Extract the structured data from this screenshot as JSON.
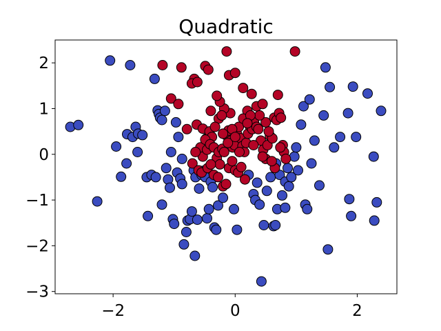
{
  "chart_data": {
    "type": "scatter",
    "title": "Quadratic",
    "xlabel": "",
    "ylabel": "",
    "xlim": [
      -2.95,
      2.65
    ],
    "ylim": [
      -3.05,
      2.5
    ],
    "xticks": [
      -2,
      0,
      2
    ],
    "yticks": [
      -3,
      -2,
      -1,
      0,
      1,
      2
    ],
    "xtick_labels": [
      "−2",
      "0",
      "2"
    ],
    "ytick_labels": [
      "−3",
      "−2",
      "−1",
      "0",
      "1",
      "2"
    ],
    "grid": false,
    "legend": "none",
    "series": [
      {
        "color": "#3b4cc0",
        "points": [
          [
            -2.05,
            2.05
          ],
          [
            -1.72,
            1.95
          ],
          [
            -1.32,
            1.65
          ],
          [
            -2.7,
            0.6
          ],
          [
            -2.57,
            0.64
          ],
          [
            -2.26,
            -1.03
          ],
          [
            -1.95,
            0.17
          ],
          [
            -1.87,
            -0.49
          ],
          [
            -1.77,
            0.44
          ],
          [
            -1.68,
            0.38
          ],
          [
            -1.63,
            0.6
          ],
          [
            -1.59,
            0.45
          ],
          [
            -1.52,
            0.42
          ],
          [
            -1.45,
            -0.5
          ],
          [
            -1.37,
            -0.45
          ],
          [
            -1.3,
            -0.5
          ],
          [
            -1.27,
            0.96
          ],
          [
            -1.25,
            0.88
          ],
          [
            -1.23,
            0.8
          ],
          [
            -1.2,
            0.75
          ],
          [
            -1.15,
            0.95
          ],
          [
            -1.13,
            -0.3
          ],
          [
            -1.1,
            -0.55
          ],
          [
            -1.07,
            -0.73
          ],
          [
            -1.05,
            0.05
          ],
          [
            -1.02,
            -1.42
          ],
          [
            -1.0,
            -1.52
          ],
          [
            -0.97,
            0.7
          ],
          [
            -0.95,
            -0.4
          ],
          [
            -0.9,
            -0.53
          ],
          [
            -0.87,
            -0.65
          ],
          [
            -0.84,
            -1.97
          ],
          [
            -0.8,
            -1.7
          ],
          [
            -0.78,
            -1.45
          ],
          [
            -0.74,
            -1.42
          ],
          [
            -0.71,
            -1.25
          ],
          [
            -0.68,
            -0.35
          ],
          [
            -0.65,
            -0.5
          ],
          [
            -0.62,
            -1.43
          ],
          [
            -0.59,
            -0.75
          ],
          [
            -0.55,
            -0.45
          ],
          [
            -0.52,
            -0.36
          ],
          [
            -0.49,
            -0.5
          ],
          [
            -0.46,
            -1.4
          ],
          [
            -0.43,
            -1.2
          ],
          [
            -0.4,
            -0.6
          ],
          [
            -0.37,
            -0.72
          ],
          [
            -0.34,
            -1.6
          ],
          [
            -0.31,
            -1.65
          ],
          [
            -0.28,
            -1.12
          ],
          [
            -0.66,
            -2.22
          ],
          [
            -1.78,
            -0.2
          ],
          [
            -1.6,
            0.05
          ],
          [
            -1.43,
            -1.35
          ],
          [
            -1.2,
            -1.1
          ],
          [
            -0.93,
            0.38
          ],
          [
            -0.87,
            -0.1
          ],
          [
            -0.2,
            -0.95
          ],
          [
            -0.02,
            -1.2
          ],
          [
            0.03,
            -1.65
          ],
          [
            0.3,
            -0.87
          ],
          [
            0.33,
            -1.0
          ],
          [
            0.36,
            -0.62
          ],
          [
            0.4,
            -1.1
          ],
          [
            0.43,
            -2.78
          ],
          [
            0.47,
            -1.55
          ],
          [
            0.52,
            -0.8
          ],
          [
            0.58,
            -0.5
          ],
          [
            0.63,
            -1.57
          ],
          [
            0.66,
            -1.55
          ],
          [
            0.69,
            -1.2
          ],
          [
            0.73,
            -0.45
          ],
          [
            0.77,
            -0.9
          ],
          [
            0.82,
            -0.6
          ],
          [
            0.86,
            -0.3
          ],
          [
            0.88,
            -0.7
          ],
          [
            0.92,
            -0.5
          ],
          [
            0.97,
            -0.05
          ],
          [
            1.0,
            0.15
          ],
          [
            1.03,
            -0.35
          ],
          [
            1.08,
            0.65
          ],
          [
            1.12,
            1.05
          ],
          [
            1.15,
            -1.1
          ],
          [
            1.18,
            -1.2
          ],
          [
            1.22,
            1.2
          ],
          [
            1.25,
            -0.2
          ],
          [
            1.3,
            0.3
          ],
          [
            1.38,
            -0.68
          ],
          [
            1.45,
            0.85
          ],
          [
            1.48,
            1.9
          ],
          [
            1.52,
            -2.08
          ],
          [
            1.55,
            1.47
          ],
          [
            1.62,
            0.15
          ],
          [
            1.72,
            0.38
          ],
          [
            1.85,
            0.9
          ],
          [
            1.87,
            -0.98
          ],
          [
            1.9,
            -1.35
          ],
          [
            1.93,
            1.48
          ],
          [
            1.98,
            0.38
          ],
          [
            2.17,
            1.33
          ],
          [
            2.27,
            -0.05
          ],
          [
            2.28,
            -1.45
          ],
          [
            2.32,
            -1.05
          ],
          [
            2.39,
            0.95
          ],
          [
            0.82,
            -1.17
          ],
          [
            0.22,
            -0.45
          ],
          [
            0.67,
            -0.2
          ]
        ]
      },
      {
        "color": "#b40426",
        "points": [
          [
            -0.14,
            2.25
          ],
          [
            0.98,
            2.25
          ],
          [
            -1.19,
            1.95
          ],
          [
            -0.88,
            1.9
          ],
          [
            -0.49,
            1.93
          ],
          [
            -0.44,
            1.85
          ],
          [
            -0.67,
            1.65
          ],
          [
            -0.71,
            1.55
          ],
          [
            -0.62,
            1.58
          ],
          [
            -0.1,
            1.73
          ],
          [
            0.0,
            1.78
          ],
          [
            0.13,
            1.45
          ],
          [
            -1.05,
            1.22
          ],
          [
            -0.93,
            1.1
          ],
          [
            -0.79,
            0.55
          ],
          [
            -0.63,
            0.65
          ],
          [
            -0.53,
            0.56
          ],
          [
            -0.47,
            0.35
          ],
          [
            -0.42,
            0.5
          ],
          [
            -0.38,
            0.38
          ],
          [
            -0.57,
            0.15
          ],
          [
            -0.53,
            -0.05
          ],
          [
            -0.49,
            0.32
          ],
          [
            -0.46,
            0.1
          ],
          [
            -0.41,
            0.22
          ],
          [
            -0.35,
            0.15
          ],
          [
            -0.3,
            -0.08
          ],
          [
            -0.27,
            0.05
          ],
          [
            -0.25,
            -0.22
          ],
          [
            -0.21,
            0.12
          ],
          [
            -0.18,
            0.05
          ],
          [
            -0.15,
            0.42
          ],
          [
            -0.11,
            0.52
          ],
          [
            -0.07,
            0.3
          ],
          [
            -0.04,
            0.15
          ],
          [
            -0.01,
            0.2
          ],
          [
            0.03,
            0.45
          ],
          [
            0.06,
            0.6
          ],
          [
            0.09,
            0.35
          ],
          [
            0.12,
            0.18
          ],
          [
            0.15,
            0.05
          ],
          [
            0.18,
            0.25
          ],
          [
            0.21,
            0.45
          ],
          [
            0.24,
            0.62
          ],
          [
            0.28,
            0.55
          ],
          [
            0.31,
            0.7
          ],
          [
            0.35,
            0.6
          ],
          [
            0.38,
            0.55
          ],
          [
            0.42,
            0.3
          ],
          [
            0.46,
            0.1
          ],
          [
            0.5,
            -0.1
          ],
          [
            0.53,
            0.2
          ],
          [
            0.57,
            0.4
          ],
          [
            0.61,
            0.35
          ],
          [
            0.64,
            0.8
          ],
          [
            0.68,
            0.75
          ],
          [
            0.72,
            0.9
          ],
          [
            0.75,
            0.8
          ],
          [
            0.78,
            0.2
          ],
          [
            0.8,
            0.05
          ],
          [
            0.83,
            -0.1
          ],
          [
            0.74,
            0.15
          ],
          [
            0.65,
            -0.3
          ],
          [
            0.6,
            -0.15
          ],
          [
            -0.65,
            0.05
          ],
          [
            -0.7,
            -0.2
          ],
          [
            -0.6,
            -0.35
          ],
          [
            -0.55,
            -0.4
          ],
          [
            -0.45,
            -0.3
          ],
          [
            -0.4,
            -0.22
          ],
          [
            -0.35,
            -0.45
          ],
          [
            -0.28,
            -0.5
          ],
          [
            -0.2,
            -0.7
          ],
          [
            -0.15,
            -0.65
          ],
          [
            -0.1,
            -0.3
          ],
          [
            -0.05,
            -0.15
          ],
          [
            0.0,
            -0.35
          ],
          [
            0.05,
            -0.4
          ],
          [
            0.1,
            -0.28
          ],
          [
            0.16,
            -0.55
          ],
          [
            -0.08,
            0.9
          ],
          [
            -0.18,
            1.0
          ],
          [
            -0.25,
            1.15
          ],
          [
            -0.3,
            1.28
          ],
          [
            -0.4,
            0.95
          ],
          [
            0.2,
            0.95
          ],
          [
            0.27,
            1.32
          ],
          [
            0.35,
            1.05
          ],
          [
            0.45,
            1.1
          ],
          [
            0.55,
            0.5
          ],
          [
            0.7,
            1.3
          ],
          [
            0.5,
            0.7
          ],
          [
            -0.27,
            0.78
          ],
          [
            -0.2,
            0.45
          ],
          [
            -0.12,
            0.25
          ],
          [
            0.07,
            0.05
          ],
          [
            -0.33,
            0.6
          ],
          [
            0.13,
            0.78
          ],
          [
            0.4,
            0.85
          ],
          [
            0.3,
            0.2
          ],
          [
            -0.22,
            0.85
          ],
          [
            0.25,
            0.85
          ],
          [
            -0.05,
            0.55
          ],
          [
            0.0,
            0.38
          ],
          [
            0.2,
            0.68
          ],
          [
            0.45,
            -0.05
          ]
        ]
      }
    ]
  }
}
